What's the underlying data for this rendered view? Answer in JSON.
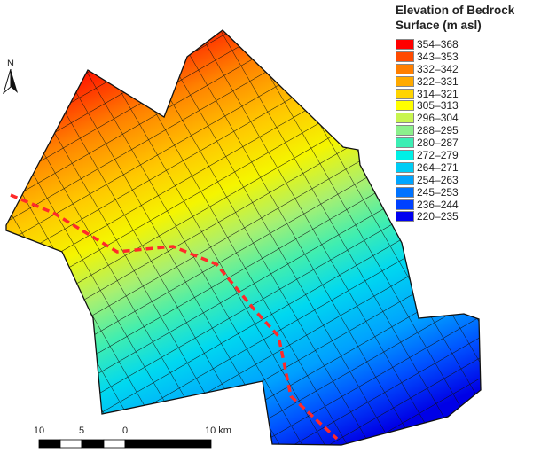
{
  "legend": {
    "title": "Elevation of Bedrock Surface (m asl)",
    "items": [
      {
        "label": "354–368",
        "color": "#ff0000"
      },
      {
        "label": "343–353",
        "color": "#ff4a00"
      },
      {
        "label": "332–342",
        "color": "#ff7f00"
      },
      {
        "label": "322–331",
        "color": "#ffaa00"
      },
      {
        "label": "314–321",
        "color": "#ffd400"
      },
      {
        "label": "305–313",
        "color": "#ffff00"
      },
      {
        "label": "296–304",
        "color": "#c8f550"
      },
      {
        "label": "288–295",
        "color": "#8cf08c"
      },
      {
        "label": "280–287",
        "color": "#3ceeb4"
      },
      {
        "label": "272–279",
        "color": "#00f0e6"
      },
      {
        "label": "264–271",
        "color": "#00cdf5"
      },
      {
        "label": "254–263",
        "color": "#00a5ff"
      },
      {
        "label": "245–253",
        "color": "#0073ff"
      },
      {
        "label": "236–244",
        "color": "#0041ff"
      },
      {
        "label": "220–235",
        "color": "#0000f0"
      }
    ]
  },
  "north_arrow": {
    "label": "N",
    "icon": "north-arrow-icon"
  },
  "scale_bar": {
    "labels": [
      "10",
      "5",
      "0",
      "10 km"
    ]
  },
  "boundary_line": {
    "color": "#ff2a2a",
    "style": "dashed"
  }
}
